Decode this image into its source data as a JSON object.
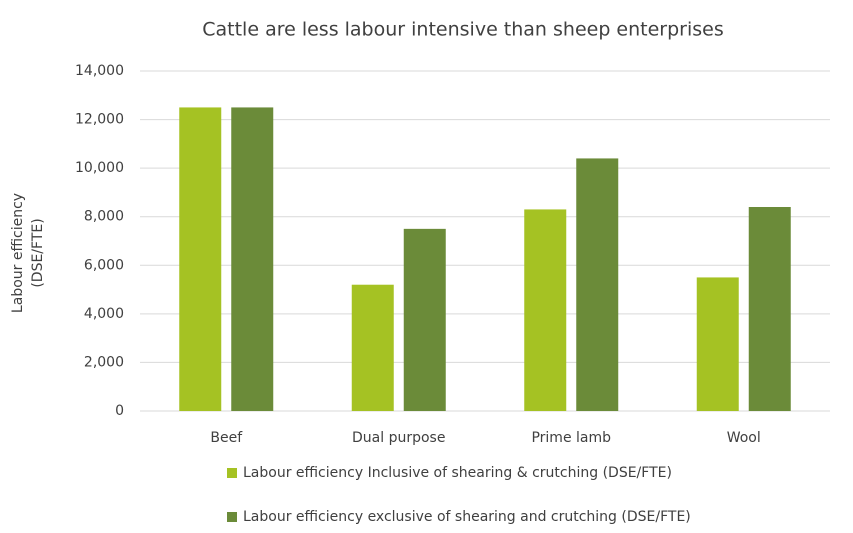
{
  "chart_data": {
    "type": "bar",
    "title": "Cattle are less labour intensive than sheep enterprises",
    "ylabel": [
      "Labour efficiency",
      "(DSE/FTE)"
    ],
    "categories": [
      "Beef",
      "Dual purpose",
      "Prime lamb",
      "Wool"
    ],
    "series": [
      {
        "name": "Labour efficiency Inclusive of shearing & crutching (DSE/FTE)",
        "color": "#a5c223",
        "values": [
          12500,
          5200,
          8300,
          5500
        ]
      },
      {
        "name": "Labour efficiency exclusive of shearing and crutching (DSE/FTE)",
        "color": "#6b8b39",
        "values": [
          12500,
          7500,
          10400,
          8400
        ]
      }
    ],
    "ylim": [
      0,
      14000
    ],
    "yticks": [
      0,
      {
        "value": 2000,
        "label": "2,000"
      },
      {
        "value": 4000,
        "label": "4,000"
      },
      {
        "value": 6000,
        "label": "6,000"
      },
      {
        "value": 8000,
        "label": "8,000"
      },
      {
        "value": 10000,
        "label": "10,000"
      },
      {
        "value": 12000,
        "label": "12,000"
      },
      {
        "value": 14000,
        "label": "14,000"
      }
    ],
    "grid": true,
    "legend": "bottom"
  }
}
